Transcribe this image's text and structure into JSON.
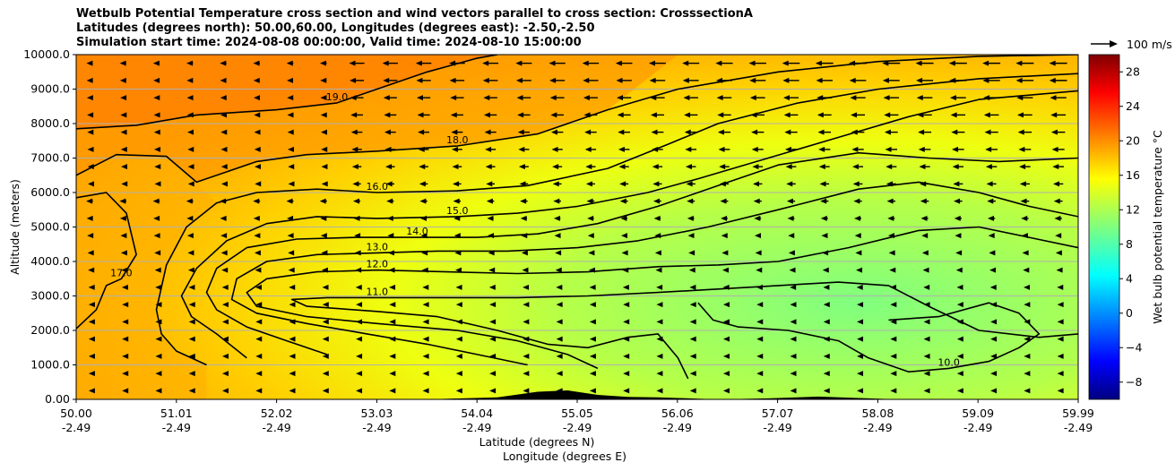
{
  "chart_data": {
    "type": "contourf",
    "title_lines": [
      "Wetbulb Potential Temperature cross section and wind vectors parallel to cross section: CrosssectionA",
      "Latitudes (degrees north): 50.00,60.00, Longitudes (degrees east): -2.50,-2.50",
      "Simulation start time: 2024-08-08 00:00:00, Valid time: 2024-08-10 15:00:00"
    ],
    "ylabel": "Altitude (meters)",
    "xlabel_lines": [
      "Latitude (degrees N)",
      "Longitude (degrees E)"
    ],
    "ylim": [
      0,
      10000
    ],
    "xlim": [
      50.0,
      59.99
    ],
    "y_ticks": [
      0,
      1000,
      2000,
      3000,
      4000,
      5000,
      6000,
      7000,
      8000,
      9000,
      10000
    ],
    "y_tick_labels": [
      "0.00",
      "1000.0",
      "2000.0",
      "3000.0",
      "4000.0",
      "5000.0",
      "6000.0",
      "7000.0",
      "8000.0",
      "9000.0",
      "10000.0"
    ],
    "x_ticks": [
      {
        "lat": "50.00",
        "lon": "-2.49"
      },
      {
        "lat": "51.01",
        "lon": "-2.49"
      },
      {
        "lat": "52.02",
        "lon": "-2.49"
      },
      {
        "lat": "53.03",
        "lon": "-2.49"
      },
      {
        "lat": "54.04",
        "lon": "-2.49"
      },
      {
        "lat": "55.05",
        "lon": "-2.49"
      },
      {
        "lat": "56.06",
        "lon": "-2.49"
      },
      {
        "lat": "57.07",
        "lon": "-2.49"
      },
      {
        "lat": "58.08",
        "lon": "-2.49"
      },
      {
        "lat": "59.09",
        "lon": "-2.49"
      },
      {
        "lat": "59.99",
        "lon": "-2.49"
      }
    ],
    "grid": "horizontal",
    "colorbar": {
      "label": "Wet bulb potential temperature °C",
      "min": -10,
      "max": 30,
      "ticks": [
        -8,
        -4,
        0,
        4,
        8,
        12,
        16,
        20,
        24,
        28
      ],
      "colormap": "jet"
    },
    "quiver_key": {
      "label": "100 m/s"
    },
    "contours": [
      {
        "level": "19.0",
        "points": [
          [
            50.0,
            7850
          ],
          [
            50.6,
            7950
          ],
          [
            51.2,
            8250
          ],
          [
            52.0,
            8400
          ],
          [
            52.6,
            8600
          ],
          [
            53.0,
            9000
          ],
          [
            53.5,
            9500
          ],
          [
            54.0,
            9900
          ],
          [
            54.2,
            10000
          ]
        ]
      },
      {
        "level": "18.0",
        "points": [
          [
            50.0,
            6500
          ],
          [
            50.4,
            7100
          ],
          [
            50.9,
            7050
          ],
          [
            51.2,
            6300
          ],
          [
            51.8,
            6900
          ],
          [
            52.3,
            7100
          ],
          [
            53.0,
            7200
          ],
          [
            53.8,
            7350
          ],
          [
            54.6,
            7700
          ],
          [
            55.3,
            8400
          ],
          [
            56.0,
            9000
          ],
          [
            57.0,
            9500
          ],
          [
            58.0,
            9800
          ],
          [
            59.0,
            9950
          ],
          [
            59.99,
            10000
          ]
        ]
      },
      {
        "level": "17.0",
        "points": [
          [
            50.0,
            5850
          ],
          [
            50.3,
            6000
          ],
          [
            50.5,
            5400
          ],
          [
            50.6,
            4200
          ],
          [
            50.45,
            3500
          ],
          [
            50.3,
            3300
          ],
          [
            50.2,
            2600
          ],
          [
            50.0,
            2050
          ]
        ]
      },
      {
        "level": "16.0",
        "points": [
          [
            59.99,
            9450
          ],
          [
            59.0,
            9300
          ],
          [
            58.0,
            9000
          ],
          [
            57.2,
            8600
          ],
          [
            56.4,
            8000
          ],
          [
            55.9,
            7400
          ],
          [
            55.3,
            6700
          ],
          [
            54.5,
            6200
          ],
          [
            53.8,
            6050
          ],
          [
            53.0,
            6000
          ],
          [
            52.4,
            6100
          ],
          [
            51.8,
            6000
          ],
          [
            51.4,
            5700
          ],
          [
            51.1,
            5000
          ],
          [
            50.9,
            3900
          ],
          [
            50.8,
            2600
          ],
          [
            50.85,
            1900
          ],
          [
            51.0,
            1400
          ],
          [
            51.3,
            1000
          ]
        ]
      },
      {
        "level": "15.0",
        "points": [
          [
            59.99,
            8950
          ],
          [
            59.0,
            8700
          ],
          [
            58.3,
            8200
          ],
          [
            57.6,
            7600
          ],
          [
            56.9,
            7000
          ],
          [
            56.2,
            6400
          ],
          [
            55.7,
            6000
          ],
          [
            55.0,
            5600
          ],
          [
            54.4,
            5400
          ],
          [
            53.8,
            5300
          ],
          [
            53.0,
            5250
          ],
          [
            52.4,
            5300
          ],
          [
            51.9,
            5100
          ],
          [
            51.5,
            4600
          ],
          [
            51.2,
            3800
          ],
          [
            51.05,
            3000
          ],
          [
            51.15,
            2400
          ],
          [
            51.4,
            1900
          ],
          [
            51.7,
            1200
          ]
        ]
      },
      {
        "level": "14.0",
        "points": [
          [
            59.99,
            7000
          ],
          [
            59.2,
            6900
          ],
          [
            58.5,
            7000
          ],
          [
            57.8,
            7150
          ],
          [
            57.0,
            6800
          ],
          [
            56.4,
            6200
          ],
          [
            55.8,
            5600
          ],
          [
            55.2,
            5100
          ],
          [
            54.6,
            4800
          ],
          [
            54.0,
            4700
          ],
          [
            53.4,
            4700
          ],
          [
            52.8,
            4700
          ],
          [
            52.2,
            4650
          ],
          [
            51.7,
            4400
          ],
          [
            51.4,
            3800
          ],
          [
            51.3,
            3100
          ],
          [
            51.4,
            2600
          ],
          [
            51.7,
            2100
          ],
          [
            52.1,
            1700
          ],
          [
            52.5,
            1300
          ]
        ]
      },
      {
        "level": "13.0",
        "points": [
          [
            59.99,
            5300
          ],
          [
            59.5,
            5600
          ],
          [
            59.0,
            6000
          ],
          [
            58.4,
            6300
          ],
          [
            57.8,
            6100
          ],
          [
            57.0,
            5500
          ],
          [
            56.3,
            5000
          ],
          [
            55.6,
            4600
          ],
          [
            55.0,
            4400
          ],
          [
            54.3,
            4300
          ],
          [
            53.6,
            4300
          ],
          [
            53.0,
            4250
          ],
          [
            52.4,
            4200
          ],
          [
            51.9,
            4000
          ],
          [
            51.6,
            3500
          ],
          [
            51.55,
            2900
          ],
          [
            51.8,
            2500
          ],
          [
            52.3,
            2200
          ],
          [
            52.9,
            1900
          ],
          [
            53.5,
            1600
          ],
          [
            54.0,
            1300
          ],
          [
            54.5,
            1000
          ]
        ]
      },
      {
        "level": "12.0",
        "points": [
          [
            59.99,
            4400
          ],
          [
            59.5,
            4700
          ],
          [
            59.0,
            5000
          ],
          [
            58.4,
            4900
          ],
          [
            57.7,
            4400
          ],
          [
            57.0,
            4000
          ],
          [
            56.4,
            3900
          ],
          [
            55.8,
            3850
          ],
          [
            55.1,
            3700
          ],
          [
            54.4,
            3650
          ],
          [
            53.7,
            3700
          ],
          [
            53.0,
            3750
          ],
          [
            52.4,
            3700
          ],
          [
            51.9,
            3500
          ],
          [
            51.7,
            3100
          ],
          [
            51.8,
            2700
          ],
          [
            52.3,
            2400
          ],
          [
            53.0,
            2200
          ],
          [
            53.8,
            2000
          ],
          [
            54.4,
            1700
          ],
          [
            54.9,
            1300
          ],
          [
            55.2,
            900
          ]
        ]
      },
      {
        "level": "11.0",
        "points": [
          [
            59.99,
            1900
          ],
          [
            59.6,
            1800
          ],
          [
            59.0,
            2000
          ],
          [
            58.5,
            2700
          ],
          [
            58.1,
            3300
          ],
          [
            57.6,
            3400
          ],
          [
            57.0,
            3300
          ],
          [
            56.4,
            3200
          ],
          [
            55.8,
            3100
          ],
          [
            55.1,
            3000
          ],
          [
            54.4,
            2950
          ],
          [
            53.7,
            2950
          ],
          [
            53.0,
            2950
          ],
          [
            52.5,
            2950
          ],
          [
            52.15,
            2900
          ],
          [
            52.3,
            2700
          ],
          [
            53.0,
            2550
          ],
          [
            53.6,
            2400
          ],
          [
            54.2,
            2000
          ],
          [
            54.7,
            1600
          ],
          [
            55.1,
            1500
          ],
          [
            55.5,
            1800
          ],
          [
            55.8,
            1900
          ],
          [
            56.0,
            1200
          ],
          [
            56.1,
            600
          ]
        ]
      },
      {
        "level": "10.0",
        "points": [
          [
            56.2,
            2800
          ],
          [
            56.35,
            2300
          ],
          [
            56.6,
            2100
          ],
          [
            57.1,
            2000
          ],
          [
            57.6,
            1700
          ],
          [
            57.9,
            1200
          ],
          [
            58.3,
            800
          ],
          [
            58.7,
            900
          ],
          [
            59.1,
            1100
          ],
          [
            59.4,
            1500
          ],
          [
            59.6,
            1900
          ],
          [
            59.4,
            2500
          ],
          [
            59.1,
            2800
          ],
          [
            58.6,
            2400
          ],
          [
            58.1,
            2300
          ]
        ]
      }
    ],
    "terrain": [
      [
        53.0,
        0
      ],
      [
        53.5,
        0
      ],
      [
        54.2,
        60
      ],
      [
        54.6,
        220
      ],
      [
        54.9,
        260
      ],
      [
        55.2,
        130
      ],
      [
        55.5,
        70
      ],
      [
        55.8,
        60
      ],
      [
        56.0,
        40
      ],
      [
        56.4,
        0
      ],
      [
        56.9,
        30
      ],
      [
        57.4,
        80
      ],
      [
        57.8,
        40
      ],
      [
        58.2,
        0
      ]
    ],
    "wind_direction": "southward (leftward along section), magnitude increasing with altitude and northward"
  }
}
